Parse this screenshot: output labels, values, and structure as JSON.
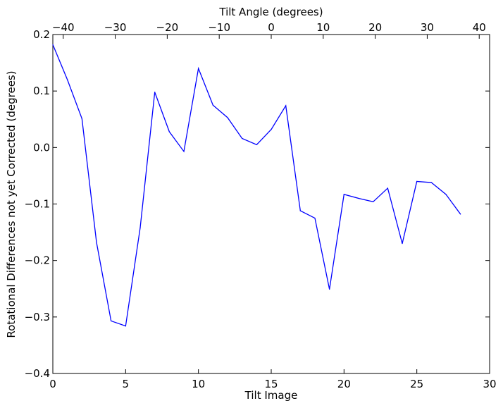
{
  "chart_data": {
    "type": "line",
    "xlabel": "Tilt Image",
    "ylabel": "Rotational Differences not yet Corrected (degrees)",
    "top_xlabel": "Tilt Angle (degrees)",
    "xlim": [
      0,
      30
    ],
    "ylim": [
      -0.4,
      0.2
    ],
    "top_xlim": [
      -42,
      42
    ],
    "x_ticks": [
      0,
      5,
      10,
      15,
      20,
      25,
      30
    ],
    "x_tick_labels": [
      "0",
      "5",
      "10",
      "15",
      "20",
      "25",
      "30"
    ],
    "y_ticks": [
      -0.4,
      -0.3,
      -0.2,
      -0.1,
      0.0,
      0.1,
      0.2
    ],
    "y_tick_labels": [
      "−0.4",
      "−0.3",
      "−0.2",
      "−0.1",
      "0.0",
      "0.1",
      "0.2"
    ],
    "top_x_ticks": [
      -40,
      -30,
      -20,
      -10,
      0,
      10,
      20,
      30,
      40
    ],
    "top_x_tick_labels": [
      "−40",
      "−30",
      "−20",
      "−10",
      "0",
      "10",
      "20",
      "30",
      "40"
    ],
    "grid": false,
    "series": [
      {
        "color": "#0000ff",
        "x": [
          0,
          1,
          2,
          3,
          4,
          5,
          6,
          7,
          8,
          9,
          10,
          11,
          12,
          13,
          14,
          15,
          16,
          17,
          18,
          19,
          20,
          21,
          22,
          23,
          24,
          25,
          26,
          27,
          28
        ],
        "y": [
          0.182,
          0.12,
          0.051,
          -0.168,
          -0.307,
          -0.316,
          -0.142,
          0.098,
          0.028,
          -0.007,
          0.14,
          0.075,
          0.053,
          0.016,
          0.005,
          0.032,
          0.074,
          -0.112,
          -0.125,
          -0.251,
          -0.083,
          -0.09,
          -0.096,
          -0.072,
          -0.17,
          -0.06,
          -0.062,
          -0.083,
          -0.118
        ]
      }
    ]
  }
}
